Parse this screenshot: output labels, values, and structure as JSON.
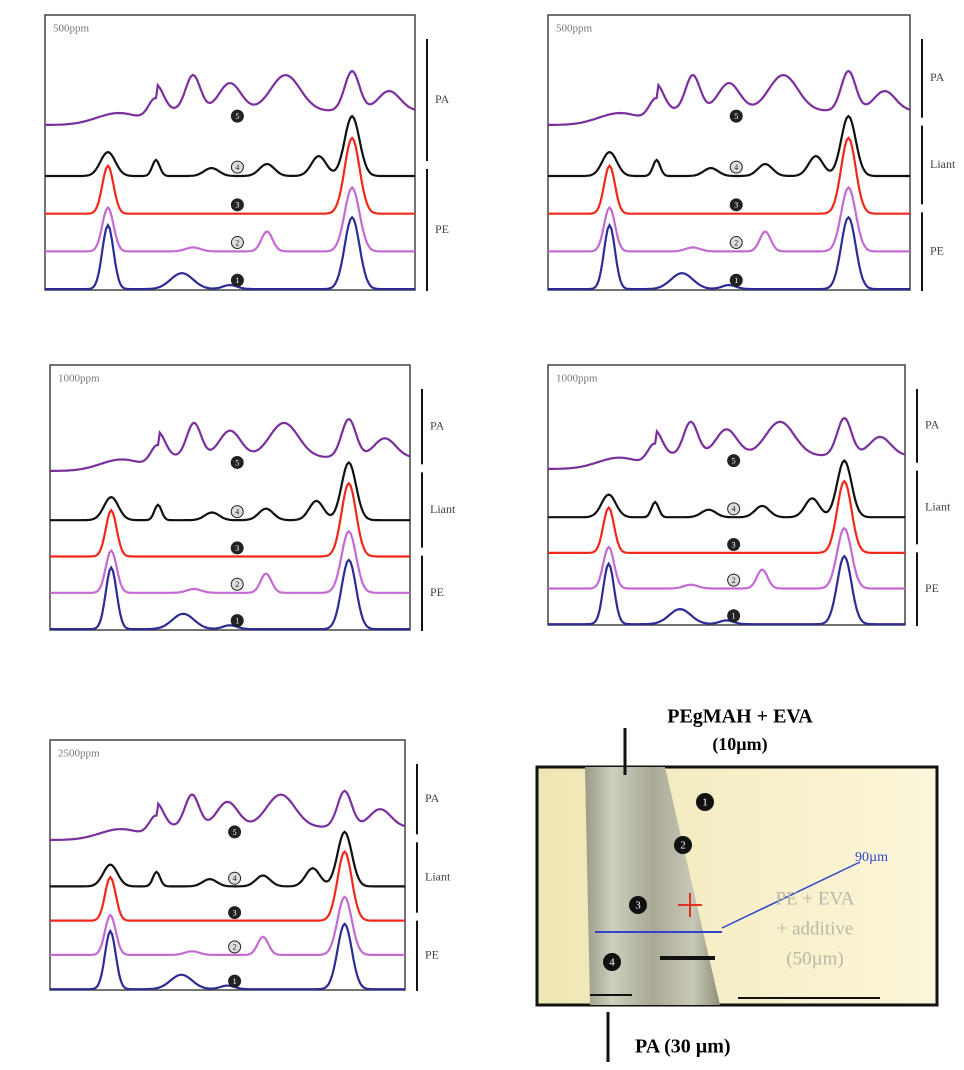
{
  "panels": [
    {
      "label": "500ppm",
      "layers": [
        "PA",
        "PE"
      ]
    },
    {
      "label": "500ppm",
      "layers": [
        "PA",
        "Liant",
        "PE"
      ]
    },
    {
      "label": "1000ppm",
      "layers": [
        "PA",
        "Liant",
        "PE"
      ]
    },
    {
      "label": "1000ppm",
      "layers": [
        "PA",
        "Liant",
        "PE"
      ]
    },
    {
      "label": "2500ppm",
      "layers": [
        "PA",
        "Liant",
        "PE"
      ]
    }
  ],
  "curve_markers": [
    "5",
    "4",
    "3",
    "2",
    "1"
  ],
  "micrograph": {
    "top_label": "PEgMAH + EVA",
    "top_thickness": "(10µm)",
    "scale": "90µm",
    "middle_lines": [
      "PE + EVA",
      "+ additive",
      "(50µm)"
    ],
    "bottom_label": "PA (30 µm)",
    "markers": [
      "1",
      "2",
      "3",
      "4"
    ]
  }
}
